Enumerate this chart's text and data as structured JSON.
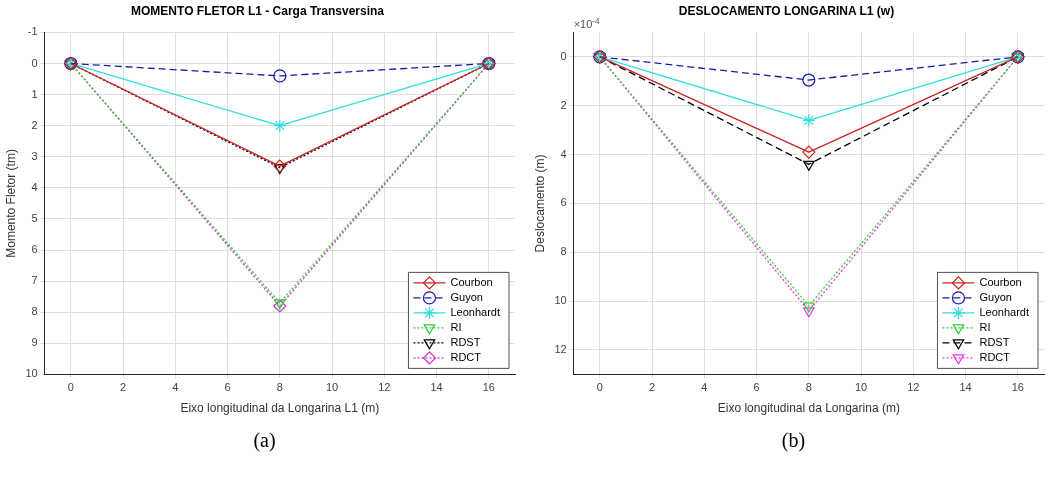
{
  "chart_data": [
    {
      "type": "line",
      "title": "MOMENTO FLETOR L1 - Carga Transversina",
      "xlabel": "Eixo longitudinal da Longarina L1 (m)",
      "ylabel": "Momento Fletor (tm)",
      "x": [
        0,
        8,
        16
      ],
      "xlim": [
        -1,
        17
      ],
      "xticks": [
        0,
        2,
        4,
        6,
        8,
        10,
        12,
        14,
        16
      ],
      "ylim": [
        10,
        -1
      ],
      "yticks": [
        -1,
        0,
        1,
        2,
        3,
        4,
        5,
        6,
        7,
        8,
        9,
        10
      ],
      "grid": true,
      "legend": "bottom right",
      "series": [
        {
          "name": "Courbon",
          "color": "#cc2222",
          "values": [
            0,
            3.3,
            0
          ],
          "marker": "diamond",
          "line_style": "solid"
        },
        {
          "name": "Guyon",
          "color": "#1a1aaa",
          "values": [
            0,
            0.4,
            0
          ],
          "marker": "circle",
          "line_style": "dashed"
        },
        {
          "name": "Leonhardt",
          "color": "#33dddd",
          "values": [
            0,
            2.0,
            0
          ],
          "marker": "cross",
          "line_style": "solid"
        },
        {
          "name": "RI",
          "color": "#33cc33",
          "values": [
            0,
            7.7,
            0
          ],
          "marker": "triangle",
          "line_style": "dotted"
        },
        {
          "name": "RDST",
          "color": "#000000",
          "values": [
            0,
            3.35,
            0
          ],
          "marker": "triangle",
          "line_style": "dotted"
        },
        {
          "name": "RDCT",
          "color": "#cc33cc",
          "values": [
            0,
            7.8,
            0
          ],
          "marker": "diamond",
          "line_style": "dotted"
        }
      ],
      "annotations": [
        "(a)"
      ]
    },
    {
      "type": "line",
      "title": "DESLOCAMENTO LONGARINA L1 (w)",
      "xlabel": "Eixo longitudinal da Longarina (m)",
      "ylabel": "Deslocamento (m)",
      "x": [
        0,
        8,
        16
      ],
      "xlim": [
        -1,
        17
      ],
      "xticks": [
        0,
        2,
        4,
        6,
        8,
        10,
        12,
        14,
        16
      ],
      "ylim": [
        13,
        -1
      ],
      "yticks": [
        0,
        2,
        4,
        6,
        8,
        10,
        12
      ],
      "grid": true,
      "legend": "bottom right",
      "series": [
        {
          "name": "Courbon",
          "color": "#cc2222",
          "values": [
            0,
            3.9,
            0
          ],
          "marker": "diamond",
          "line_style": "solid"
        },
        {
          "name": "Guyon",
          "color": "#1a1aaa",
          "values": [
            0,
            0.95,
            0
          ],
          "marker": "circle",
          "line_style": "dashed"
        },
        {
          "name": "Leonhardt",
          "color": "#33dddd",
          "values": [
            0,
            2.6,
            0
          ],
          "marker": "cross",
          "line_style": "solid"
        },
        {
          "name": "RI",
          "color": "#33cc33",
          "values": [
            0,
            10.2,
            0
          ],
          "marker": "triangle",
          "line_style": "dotted"
        },
        {
          "name": "RDST",
          "color": "#000000",
          "values": [
            0,
            4.4,
            0
          ],
          "marker": "triangle",
          "line_style": "dashed"
        },
        {
          "name": "RDCT",
          "color": "#ee33ee",
          "values": [
            0,
            10.4,
            0
          ],
          "marker": "triangle",
          "line_style": "dotted"
        }
      ],
      "annotations": [
        "×10$^{-4}$",
        "(b)"
      ]
    }
  ]
}
